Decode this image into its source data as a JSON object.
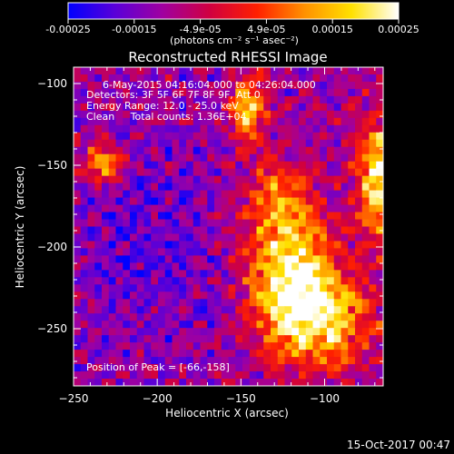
{
  "colorbar": {
    "ticks": [
      "-0.00025",
      "-0.00015",
      "-4.9e-05",
      "4.9e-05",
      "0.00015",
      "0.00025"
    ],
    "unit_label": "(photons cm⁻² s⁻¹ asec⁻²)",
    "range": [
      -0.00025,
      0.00025
    ],
    "colors": [
      "#0000ff",
      "#5a00d8",
      "#a000a0",
      "#d00040",
      "#ff2000",
      "#ff9000",
      "#ffe000",
      "#ffffff"
    ]
  },
  "chart_data": {
    "type": "heatmap",
    "title": "Reconstructed RHESSI Image",
    "xlabel": "Heliocentric X (arcsec)",
    "ylabel": "Heliocentric Y (arcsec)",
    "xlim": [
      -250,
      -65
    ],
    "ylim": [
      -285,
      -90
    ],
    "x_ticks": [
      -250,
      -200,
      -150,
      -100
    ],
    "y_ticks": [
      -100,
      -150,
      -200,
      -250
    ],
    "x_tick_labels": [
      "−250",
      "−200",
      "−150",
      "−100"
    ],
    "y_tick_labels": [
      "−100",
      "−150",
      "−200",
      "−250"
    ],
    "annotations": {
      "time": "6-May-2015 04:16:04.000 to 04:26:04.000",
      "detectors": "Detectors: 3F 5F 6F 7F 8F 9F, Att 0",
      "energy": "Energy Range: 12.0 - 25.0 keV",
      "clean": "Clean     Total counts: 1.36E+04",
      "peak": "Position of Peak = [-66,-158]"
    },
    "peak_position": [
      -66,
      -158
    ],
    "total_counts": 13600,
    "energy_range_kev": [
      12.0,
      25.0
    ]
  },
  "footer": {
    "timestamp": "15-Oct-2017 00:47"
  }
}
